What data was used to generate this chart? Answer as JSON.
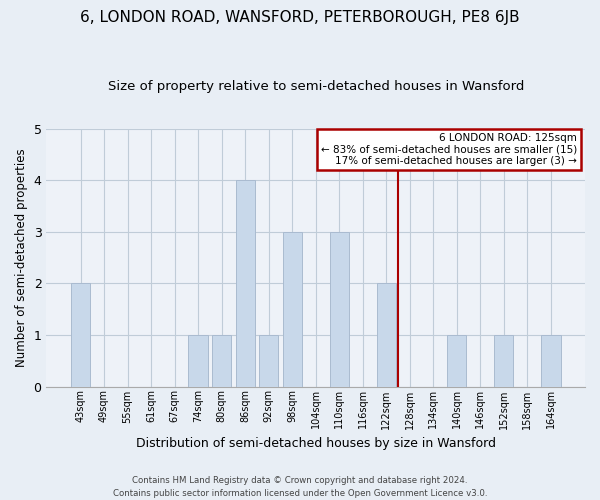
{
  "title": "6, LONDON ROAD, WANSFORD, PETERBOROUGH, PE8 6JB",
  "subtitle": "Size of property relative to semi-detached houses in Wansford",
  "xlabel": "Distribution of semi-detached houses by size in Wansford",
  "ylabel": "Number of semi-detached properties",
  "footer_line1": "Contains HM Land Registry data © Crown copyright and database right 2024.",
  "footer_line2": "Contains public sector information licensed under the Open Government Licence v3.0.",
  "bin_labels": [
    "43sqm",
    "49sqm",
    "55sqm",
    "61sqm",
    "67sqm",
    "74sqm",
    "80sqm",
    "86sqm",
    "92sqm",
    "98sqm",
    "104sqm",
    "110sqm",
    "116sqm",
    "122sqm",
    "128sqm",
    "134sqm",
    "140sqm",
    "146sqm",
    "152sqm",
    "158sqm",
    "164sqm"
  ],
  "bar_values": [
    2,
    0,
    0,
    0,
    0,
    1,
    1,
    4,
    1,
    3,
    0,
    3,
    0,
    2,
    0,
    0,
    1,
    0,
    1,
    0,
    1
  ],
  "bar_color": "#c8d8ea",
  "bar_edge_color": "#aabbd0",
  "property_line_color": "#aa0000",
  "legend_title": "6 LONDON ROAD: 125sqm",
  "legend_line1": "← 83% of semi-detached houses are smaller (15)",
  "legend_line2": "17% of semi-detached houses are larger (3) →",
  "ylim": [
    0,
    5
  ],
  "yticks": [
    0,
    1,
    2,
    3,
    4,
    5
  ],
  "bg_color": "#e8eef5",
  "plot_bg_color": "#eef2f8",
  "grid_color": "#c0ccd8",
  "title_fontsize": 11,
  "subtitle_fontsize": 9.5
}
